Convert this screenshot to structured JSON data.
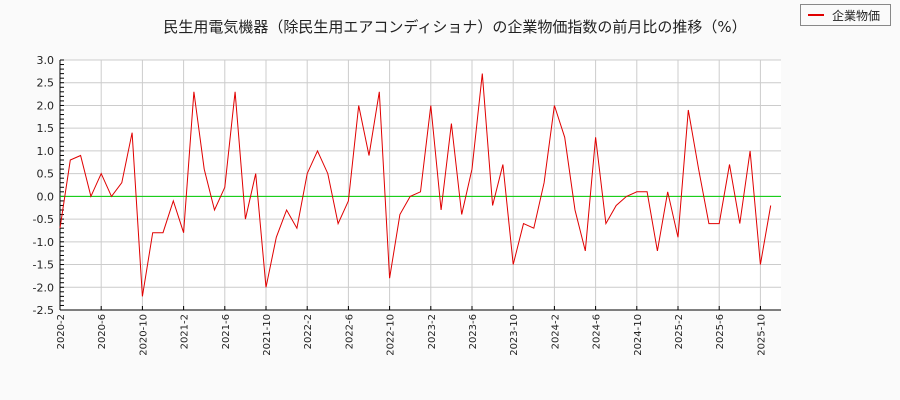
{
  "title": "民生用電気機器（除民生用エアコンディショナ）の企業物価指数の前月比の推移（%）",
  "legend": {
    "label": "企業物価",
    "color": "#e00000"
  },
  "chart_data": {
    "type": "line",
    "title": "民生用電気機器（除民生用エアコンディショナ）の企業物価指数の前月比の推移（%）",
    "xlabel": "",
    "ylabel": "",
    "ylim": [
      -2.5,
      3.0
    ],
    "yticks": [
      3.0,
      2.5,
      2.0,
      1.5,
      1.0,
      0.5,
      0.0,
      -0.5,
      -1.0,
      -1.5,
      -2.0,
      -2.5
    ],
    "xticks": [
      "2020-2",
      "2020-6",
      "2020-10",
      "2021-2",
      "2021-6",
      "2021-10",
      "2022-2",
      "2022-6",
      "2022-10",
      "2023-2",
      "2023-6",
      "2023-10",
      "2024-2",
      "2024-6",
      "2024-10",
      "2025-2",
      "2025-6",
      "2025-10"
    ],
    "grid": true,
    "legend_position": "top-right",
    "zero_line_color": "#00cc00",
    "x": [
      "2020-2",
      "2020-3",
      "2020-4",
      "2020-5",
      "2020-6",
      "2020-7",
      "2020-8",
      "2020-9",
      "2020-10",
      "2020-11",
      "2020-12",
      "2021-1",
      "2021-2",
      "2021-3",
      "2021-4",
      "2021-5",
      "2021-6",
      "2021-7",
      "2021-8",
      "2021-9",
      "2021-10",
      "2021-11",
      "2021-12",
      "2022-1",
      "2022-2",
      "2022-3",
      "2022-4",
      "2022-5",
      "2022-6",
      "2022-7",
      "2022-8",
      "2022-9",
      "2022-10",
      "2022-11",
      "2022-12",
      "2023-1",
      "2023-2",
      "2023-3",
      "2023-4",
      "2023-5",
      "2023-6",
      "2023-7",
      "2023-8",
      "2023-9",
      "2023-10",
      "2023-11",
      "2023-12",
      "2024-1",
      "2024-2",
      "2024-3",
      "2024-4",
      "2024-5",
      "2024-6",
      "2024-7",
      "2024-8",
      "2024-9",
      "2024-10",
      "2024-11",
      "2024-12",
      "2025-1",
      "2025-2",
      "2025-3",
      "2025-4",
      "2025-5",
      "2025-6",
      "2025-7",
      "2025-8",
      "2025-9",
      "2025-10",
      "2025-11"
    ],
    "series": [
      {
        "name": "企業物価",
        "values": [
          -0.7,
          0.8,
          0.9,
          0.0,
          0.5,
          0.0,
          0.3,
          1.4,
          -2.2,
          -0.8,
          -0.8,
          -0.1,
          -0.8,
          2.3,
          0.6,
          -0.3,
          0.2,
          2.3,
          -0.5,
          0.5,
          -2.0,
          -0.9,
          -0.3,
          -0.7,
          0.5,
          1.0,
          0.5,
          -0.6,
          -0.1,
          2.0,
          0.9,
          2.3,
          -1.8,
          -0.4,
          0.0,
          0.1,
          2.0,
          -0.3,
          1.6,
          -0.4,
          0.6,
          2.7,
          -0.2,
          0.7,
          -1.5,
          -0.6,
          -0.7,
          0.3,
          2.0,
          1.3,
          -0.3,
          -1.2,
          1.3,
          -0.6,
          -0.2,
          0.0,
          0.1,
          0.1,
          -1.2,
          0.1,
          -0.9,
          1.9,
          0.6,
          -0.6,
          -0.6,
          0.7,
          -0.6,
          1.0,
          -1.5,
          -0.2
        ]
      }
    ]
  }
}
